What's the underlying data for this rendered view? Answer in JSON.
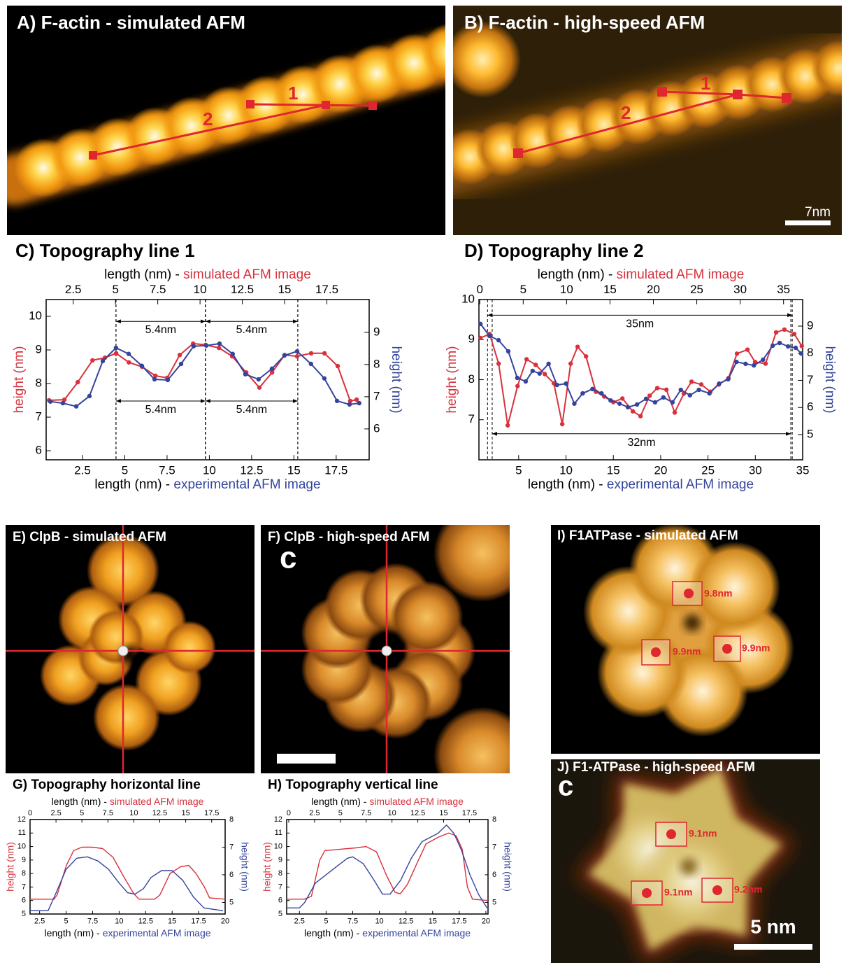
{
  "panels": [
    {
      "title": "A) F-actin - simulated AFM",
      "line_labels": [
        "1",
        "2"
      ]
    },
    {
      "title": "B) F-actin - high-speed AFM",
      "line_labels": [
        "1",
        "2"
      ],
      "scale_bar": "7nm"
    },
    {
      "title": "E) ClpB - simulated AFM"
    },
    {
      "title": "F) ClpB - high-speed AFM",
      "mark": "c"
    },
    {
      "title": "I) F1ATPase - simulated AFM",
      "distances": [
        "9.8nm",
        "9.9nm",
        "9.9nm"
      ]
    },
    {
      "title": "J) F1-ATPase - high-speed AFM",
      "mark": "c",
      "distances": [
        "9.1nm",
        "9.1nm",
        "9.2nm"
      ],
      "scale_bar": "5 nm"
    }
  ],
  "chart_data": [
    {
      "type": "line",
      "title": "C) Topography line 1",
      "xlabel_prefix": "length (nm) - ",
      "xlabel_source": "experimental AFM image",
      "x2label_prefix": "length (nm) - ",
      "x2label_source": "simulated AFM image",
      "ylabel": "height (nm)",
      "y2label": "height (nm)",
      "markers": true,
      "xlim": [
        0.35,
        19.45
      ],
      "xticks": [
        2.5,
        5,
        7.5,
        10,
        12.5,
        15,
        17.5
      ],
      "x2lim": [
        0.9,
        20
      ],
      "x2ticks": [
        2.5,
        5,
        7.5,
        10,
        12.5,
        15,
        17.5
      ],
      "ylim": [
        5.73,
        10.5
      ],
      "yticks": [
        6,
        7,
        8,
        9,
        10
      ],
      "y2lim": [
        5.04,
        10.02
      ],
      "y2ticks": [
        6,
        7,
        8,
        9
      ],
      "series": [
        {
          "color": "#d8313c",
          "x_axis": "x2",
          "x": [
            1.07,
            1.98,
            2.77,
            3.64,
            4.38,
            5.04,
            5.79,
            6.57,
            7.36,
            8.06,
            8.8,
            9.59,
            10.33,
            11.12,
            11.9,
            12.73,
            13.51,
            14.26,
            15,
            15.74,
            16.57,
            17.36,
            18.14,
            18.88,
            19.26
          ],
          "values": [
            7.5,
            7.52,
            8.04,
            8.69,
            8.77,
            8.9,
            8.63,
            8.5,
            8.23,
            8.17,
            8.85,
            9.19,
            9.15,
            9.06,
            8.81,
            8.33,
            7.88,
            8.33,
            8.85,
            8.81,
            8.9,
            8.9,
            8.52,
            7.48,
            7.52
          ]
        },
        {
          "color": "#34449c",
          "axis": "y2",
          "x": [
            0.6,
            1.34,
            2.13,
            2.91,
            3.7,
            4.48,
            5.23,
            6.01,
            6.76,
            7.54,
            8.33,
            9.07,
            9.82,
            10.6,
            11.38,
            12.13,
            12.91,
            13.7,
            14.44,
            15.19,
            16.01,
            16.8,
            17.55,
            18.29,
            18.86
          ],
          "values": [
            6.85,
            6.8,
            6.7,
            7.02,
            8.11,
            8.52,
            8.33,
            7.96,
            7.54,
            7.52,
            8.02,
            8.57,
            8.59,
            8.65,
            8.33,
            7.7,
            7.54,
            7.87,
            8.28,
            8.41,
            8.02,
            7.57,
            6.87,
            6.76,
            6.8
          ]
        }
      ],
      "annotations": [
        {
          "text": "5.4nm",
          "x": [
            4.48,
            9.77
          ],
          "y": 9.85
        },
        {
          "text": "5.4nm",
          "x": [
            9.77,
            15.23
          ],
          "y": 9.85
        },
        {
          "text": "5.4nm",
          "x": [
            4.48,
            9.77
          ],
          "y": 7.48
        },
        {
          "text": "5.4nm",
          "x": [
            9.77,
            15.23
          ],
          "y": 7.48
        }
      ]
    },
    {
      "type": "line",
      "title": "D) Topography line 2",
      "xlabel_prefix": "length (nm) - ",
      "xlabel_source": "experimental AFM image",
      "x2label_prefix": "length (nm) - ",
      "x2label_source": "simulated AFM image",
      "ylabel": "height (nm)",
      "y2label": "height (nm)",
      "markers": true,
      "xlim": [
        0.8,
        35
      ],
      "xticks": [
        5,
        10,
        15,
        20,
        25,
        30,
        35
      ],
      "x2lim": [
        -0.1,
        37.2
      ],
      "x2ticks": [
        0,
        5,
        10,
        15,
        20,
        25,
        30,
        35
      ],
      "ylim": [
        6,
        10
      ],
      "yticks": [
        7,
        8,
        9,
        10
      ],
      "y2lim": [
        4.07,
        9.98
      ],
      "y2ticks": [
        5,
        6,
        7,
        8,
        9
      ],
      "series": [
        {
          "color": "#d8313c",
          "x_axis": "x2",
          "x": [
            0.08,
            1.13,
            2.17,
            3.22,
            4.35,
            5.39,
            6.44,
            7.49,
            8.53,
            9.5,
            10.47,
            11.27,
            12.24,
            13.37,
            14.33,
            15.38,
            16.43,
            17.63,
            18.52,
            19.57,
            20.45,
            21.5,
            22.46,
            23.51,
            24.4,
            25.52,
            26.57,
            27.54,
            28.66,
            29.63,
            30.84,
            31.72,
            32.93,
            34.14,
            35.1,
            36.23,
            37.1
          ],
          "values": [
            9.04,
            9.14,
            8.4,
            6.86,
            7.84,
            8.51,
            8.37,
            8.14,
            7.91,
            6.89,
            8.4,
            8.82,
            8.58,
            7.7,
            7.58,
            7.44,
            7.53,
            7.21,
            7.09,
            7.6,
            7.79,
            7.75,
            7.18,
            7.65,
            7.95,
            7.88,
            7.7,
            7.88,
            8.04,
            8.65,
            8.75,
            8.44,
            8.4,
            9.18,
            9.25,
            9.14,
            8.84
          ]
        },
        {
          "color": "#34449c",
          "axis": "y2",
          "x": [
            0.96,
            1.91,
            2.87,
            3.9,
            4.85,
            5.74,
            6.47,
            7.21,
            8.16,
            9.04,
            10,
            10.88,
            11.76,
            12.79,
            13.75,
            14.71,
            15.66,
            16.54,
            17.5,
            18.46,
            19.41,
            20.29,
            21.25,
            22.13,
            23.09,
            24.04,
            25.15,
            26.18,
            27.13,
            28.01,
            28.97,
            29.85,
            30.81,
            31.84,
            32.57,
            33.46,
            34.26,
            34.85
          ],
          "values": [
            9.08,
            8.64,
            8.48,
            8.07,
            7.09,
            6.96,
            7.35,
            7.25,
            7.61,
            6.83,
            6.88,
            6.14,
            6.52,
            6.68,
            6.52,
            6.26,
            6.14,
            6.01,
            6.11,
            6.32,
            6.19,
            6.37,
            6.19,
            6.65,
            6.45,
            6.65,
            6.52,
            6.88,
            7.04,
            7.68,
            7.61,
            7.55,
            7.76,
            8.28,
            8.38,
            8.25,
            8.2,
            7.99
          ]
        }
      ],
      "annotations": [
        {
          "text": "35nm",
          "x": [
            0.89,
            36
          ],
          "x_axis": "x2",
          "y": 9.61
        },
        {
          "text": "32nm",
          "x": [
            2.2,
            33.75
          ],
          "y": 6.65
        }
      ]
    },
    {
      "type": "line",
      "title": "G) Topography horizontal line",
      "xlabel_prefix": "length (nm) - ",
      "xlabel_source": "experimental AFM image",
      "x2label_prefix": "length (nm) - ",
      "x2label_source": "simulated AFM image",
      "ylabel": "height (nm)",
      "y2label": "height (nm)",
      "markers": false,
      "xlim": [
        1.6,
        20
      ],
      "xticks": [
        2.5,
        5,
        7.5,
        10,
        12.5,
        15,
        17.5,
        20
      ],
      "x2lim": [
        0,
        18.8
      ],
      "x2ticks": [
        0,
        2.5,
        5,
        7.5,
        10,
        12.5,
        15,
        17.5
      ],
      "ylim": [
        5,
        12
      ],
      "yticks": [
        5,
        6,
        7,
        8,
        9,
        10,
        11,
        12
      ],
      "y2lim": [
        4.58,
        8
      ],
      "y2ticks": [
        5,
        6,
        7,
        8
      ],
      "series": [
        {
          "color": "#d8313c",
          "x_axis": "x2",
          "x": [
            0,
            2.3,
            2.6,
            3.5,
            4.2,
            5,
            6,
            7,
            8,
            9,
            10,
            10.5,
            12,
            12.5,
            13.5,
            14.5,
            15.3,
            16,
            16.8,
            17.3,
            18.8
          ],
          "values": [
            6.1,
            6.1,
            6.4,
            8.6,
            9.7,
            9.95,
            9.95,
            9.85,
            9.2,
            7.8,
            6.5,
            6.1,
            6.1,
            6.4,
            8,
            8.5,
            8.6,
            8,
            7,
            6.2,
            6.1
          ]
        },
        {
          "color": "#34449c",
          "axis": "y2",
          "x": [
            1.6,
            3.3,
            4,
            5,
            6,
            7,
            8,
            9,
            10,
            10.8,
            11.5,
            12.3,
            13,
            14,
            15,
            16,
            17,
            18,
            19.8
          ],
          "values": [
            4.7,
            4.7,
            5.3,
            6.2,
            6.6,
            6.65,
            6.5,
            6.2,
            5.7,
            5.35,
            5.3,
            5.5,
            5.9,
            6.15,
            6.15,
            5.8,
            5.2,
            4.8,
            4.7
          ]
        }
      ]
    },
    {
      "type": "line",
      "title": "H) Topography vertical line",
      "xlabel_prefix": "length (nm) - ",
      "xlabel_source": "experimental AFM image",
      "x2label_prefix": "length (nm) - ",
      "x2label_source": "simulated AFM image",
      "ylabel": "height (nm)",
      "y2label": "height (nm)",
      "markers": false,
      "xlim": [
        1.3,
        20.2
      ],
      "xticks": [
        2.5,
        5,
        7.5,
        10,
        12.5,
        15,
        17.5,
        20
      ],
      "x2lim": [
        -0.2,
        19.3
      ],
      "x2ticks": [
        0,
        2.5,
        5,
        7.5,
        10,
        12.5,
        15,
        17.5
      ],
      "ylim": [
        5,
        12
      ],
      "yticks": [
        5,
        6,
        7,
        8,
        9,
        10,
        11,
        12
      ],
      "y2lim": [
        4.58,
        8
      ],
      "y2ticks": [
        5,
        6,
        7,
        8
      ],
      "series": [
        {
          "color": "#d8313c",
          "x_axis": "x2",
          "x": [
            -0.2,
            1.5,
            2.2,
            3,
            3.5,
            5,
            6.5,
            7.5,
            8.5,
            9.5,
            10.3,
            10.8,
            11.5,
            12.5,
            13.3,
            14.5,
            15.5,
            16.2,
            16.8,
            17.3,
            17.8,
            19.3
          ],
          "values": [
            6.1,
            6.1,
            6.3,
            9,
            9.7,
            9.8,
            9.9,
            10,
            9.6,
            7.8,
            6.6,
            6.5,
            7.2,
            8.9,
            10.2,
            10.7,
            11,
            10.8,
            9.8,
            7,
            6.1,
            6
          ]
        },
        {
          "color": "#34449c",
          "axis": "y2",
          "x": [
            1.3,
            2.5,
            3,
            4,
            5,
            6,
            7,
            7.5,
            8.5,
            9.5,
            10.3,
            11,
            12,
            13,
            14,
            15.5,
            16.3,
            17,
            17.7,
            18.5,
            19.3,
            20.1
          ],
          "values": [
            4.8,
            4.8,
            5,
            5.7,
            6,
            6.3,
            6.6,
            6.65,
            6.4,
            5.8,
            5.3,
            5.3,
            5.8,
            6.6,
            7.2,
            7.5,
            7.8,
            7.5,
            6.9,
            6,
            5.3,
            4.8
          ]
        }
      ]
    }
  ]
}
